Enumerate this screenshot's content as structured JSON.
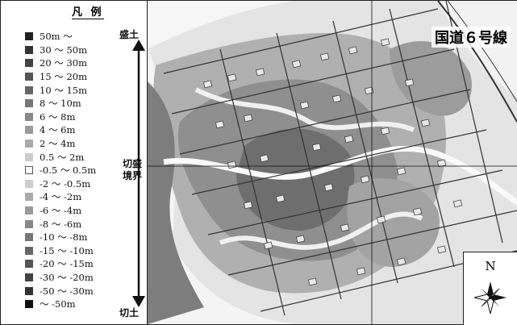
{
  "legend": {
    "title": "凡 例",
    "items": [
      {
        "label": "50m ～",
        "color": "#222222"
      },
      {
        "label": "30 ～ 50m",
        "color": "#333333"
      },
      {
        "label": "20 ～ 30m",
        "color": "#444444"
      },
      {
        "label": "15 ～ 20m",
        "color": "#555555"
      },
      {
        "label": "10 ～ 15m",
        "color": "#666666"
      },
      {
        "label": "8 ～ 10m",
        "color": "#777777"
      },
      {
        "label": "6 ～ 8m",
        "color": "#888888"
      },
      {
        "label": "4 ～ 6m",
        "color": "#999999"
      },
      {
        "label": "2 ～ 4m",
        "color": "#aaaaaa"
      },
      {
        "label": "0.5 ～ 2m",
        "color": "#cccccc"
      },
      {
        "label": "-0.5 ～ 0.5m",
        "color": "#ffffff"
      },
      {
        "label": "-2 ～ -0.5m",
        "color": "#cccccc"
      },
      {
        "label": "-4 ～ -2m",
        "color": "#aaaaaa"
      },
      {
        "label": "-6 ～ -4m",
        "color": "#999999"
      },
      {
        "label": "-8 ～ -6m",
        "color": "#888888"
      },
      {
        "label": "-10 ～ -8m",
        "color": "#777777"
      },
      {
        "label": "-15 ～ -10m",
        "color": "#666666"
      },
      {
        "label": "-20 ～ -15m",
        "color": "#555555"
      },
      {
        "label": "-30 ～ -20m",
        "color": "#444444"
      },
      {
        "label": "-50 ～ -30m",
        "color": "#333333"
      },
      {
        "label": "～ -50m",
        "color": "#111111"
      }
    ],
    "axis": {
      "top_label": "盛土",
      "boundary_label": "切盛境界",
      "bottom_label": "切土"
    }
  },
  "map": {
    "title": "国道６号線",
    "north_label": "N"
  }
}
